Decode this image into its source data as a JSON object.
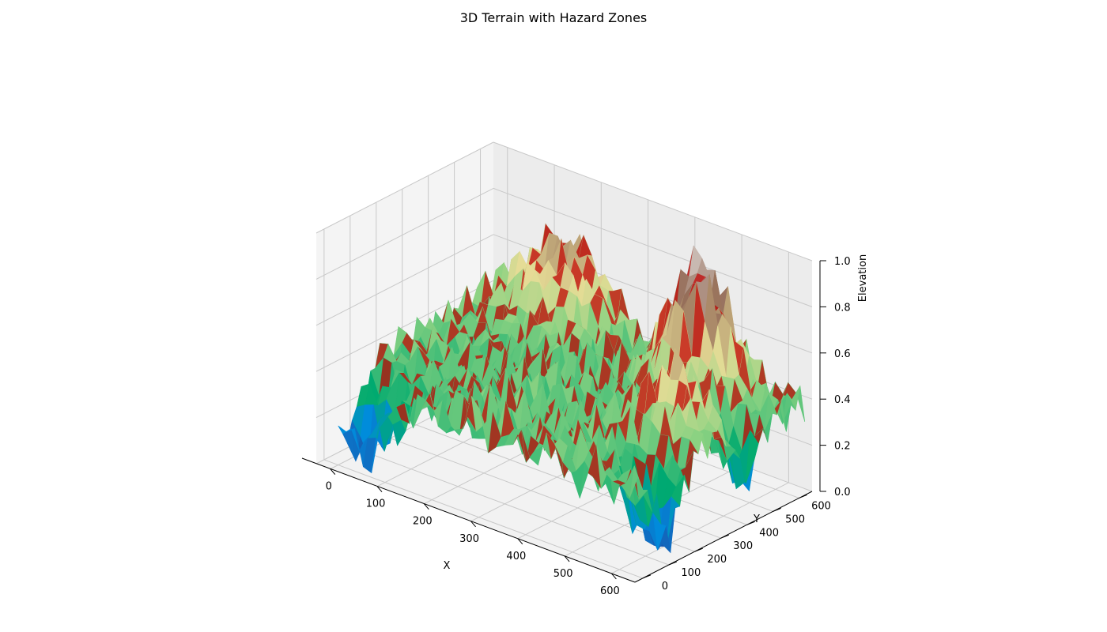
{
  "chart_data": {
    "type": "surface3d",
    "title": "3D Terrain with Hazard Zones",
    "xlabel": "X",
    "ylabel": "Y",
    "zlabel": "Elevation",
    "x_ticks": [
      "0",
      "100",
      "200",
      "300",
      "400",
      "500",
      "600"
    ],
    "y_ticks": [
      "0",
      "100",
      "200",
      "300",
      "400",
      "500",
      "600"
    ],
    "z_ticks": [
      "0.0",
      "0.2",
      "0.4",
      "0.6",
      "0.8",
      "1.0"
    ],
    "xlim": [
      -30,
      650
    ],
    "ylim": [
      -30,
      650
    ],
    "zlim": [
      0,
      1.0
    ],
    "grid": true,
    "surface": {
      "colormap": "terrain",
      "hazard_overlay_color": "#c00000",
      "peaks": [
        {
          "x": 480,
          "y": 520,
          "z": 0.95
        },
        {
          "x": 150,
          "y": 600,
          "z": 0.85
        },
        {
          "x": 560,
          "y": 300,
          "z": 0.72
        }
      ],
      "valleys": [
        {
          "x": 30,
          "y": 20,
          "z": 0.05
        },
        {
          "x": 610,
          "y": 120,
          "z": 0.02
        },
        {
          "x": 620,
          "y": 420,
          "z": 0.1
        }
      ]
    }
  }
}
